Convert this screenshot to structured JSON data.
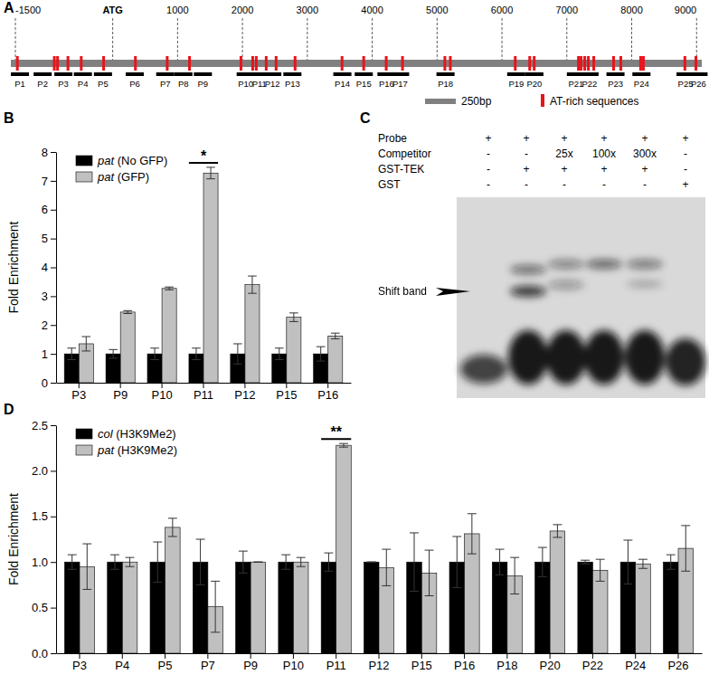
{
  "panel_labels": [
    "A",
    "B",
    "C",
    "D"
  ],
  "diagram": {
    "range": [
      -1570,
      9080
    ],
    "ticks": [
      -1500,
      {
        "value": 0,
        "label": "ATG"
      },
      1000,
      2000,
      3000,
      4000,
      5000,
      6000,
      7000,
      8000,
      9000
    ],
    "at_rich": [
      -1470,
      -900,
      -850,
      -690,
      -485,
      -140,
      350,
      840,
      1184,
      1977,
      2158,
      2213,
      2366,
      2519,
      2811,
      3535,
      3869,
      4216,
      4467,
      5120,
      5204,
      6205,
      6428,
      6497,
      7179,
      7220,
      7276,
      7332,
      7415,
      7721,
      7832,
      8138,
      8180,
      8820,
      8990
    ],
    "primers": [
      {
        "label": "P1",
        "position": -1430
      },
      {
        "label": "P2",
        "position": -1080
      },
      {
        "label": "P3",
        "position": -760
      },
      {
        "label": "P4",
        "position": -460
      },
      {
        "label": "P5",
        "position": -150
      },
      {
        "label": "P6",
        "position": 340
      },
      {
        "label": "P7",
        "position": 810
      },
      {
        "label": "P8",
        "position": 1090
      },
      {
        "label": "P9",
        "position": 1390
      },
      {
        "label": "P10",
        "position": 2050
      },
      {
        "label": "P11",
        "position": 2260
      },
      {
        "label": "P12",
        "position": 2460
      },
      {
        "label": "P13",
        "position": 2770
      },
      {
        "label": "P14",
        "position": 3540
      },
      {
        "label": "P15",
        "position": 3870
      },
      {
        "label": "P16",
        "position": 4220
      },
      {
        "label": "P17",
        "position": 4430
      },
      {
        "label": "P18",
        "position": 5130
      },
      {
        "label": "P19",
        "position": 6220
      },
      {
        "label": "P20",
        "position": 6500
      },
      {
        "label": "P21",
        "position": 7140
      },
      {
        "label": "P22",
        "position": 7350
      },
      {
        "label": "P23",
        "position": 7750
      },
      {
        "label": "P24",
        "position": 8150
      },
      {
        "label": "P25",
        "position": 8830
      },
      {
        "label": "P26",
        "position": 9030
      }
    ],
    "legend": [
      {
        "label": "250bp",
        "color": "#808080"
      },
      {
        "label": "AT-rich sequences",
        "color": "#e8141b"
      }
    ]
  },
  "gel": {
    "rows": [
      {
        "label": "Probe",
        "cells": [
          "+",
          "+",
          "+",
          "+",
          "+",
          "+"
        ]
      },
      {
        "label": "Competitor",
        "cells": [
          "-",
          "-",
          "25x",
          "100x",
          "300x",
          "-"
        ]
      },
      {
        "label": "GST-TEK",
        "cells": [
          "-",
          "+",
          "+",
          "+",
          "+",
          "-"
        ]
      },
      {
        "label": "GST",
        "cells": [
          "-",
          "-",
          "-",
          "-",
          "-",
          "+"
        ]
      }
    ],
    "annotation": "Shift band"
  },
  "chart_data": [
    {
      "type": "bar",
      "y_label": "Fold Enrichment",
      "categories": [
        "P3",
        "P9",
        "P10",
        "P11",
        "P12",
        "P15",
        "P16"
      ],
      "series": [
        {
          "name": "pat (No GFP)",
          "color": "#000000",
          "values": [
            1,
            1,
            1,
            1,
            1,
            1,
            1
          ],
          "errors": [
            0.2,
            0.15,
            0.2,
            0.2,
            0.35,
            0.2,
            0.25
          ]
        },
        {
          "name": "pat (GFP)",
          "color": "#c0c0c0",
          "values": [
            1.35,
            2.45,
            3.27,
            7.27,
            3.4,
            2.27,
            1.62
          ],
          "errors": [
            0.25,
            0.05,
            0.05,
            0.2,
            0.3,
            0.15,
            0.1
          ]
        }
      ],
      "ylim": [
        0,
        8
      ],
      "yticks": [
        0,
        1,
        2,
        3,
        4,
        5,
        6,
        7,
        8
      ],
      "legend": "upper left",
      "annotations": [
        {
          "text": "*",
          "category": "P11"
        }
      ]
    },
    {
      "type": "bar",
      "y_label": "Fold Enrichment",
      "categories": [
        "P3",
        "P4",
        "P5",
        "P7",
        "P9",
        "P10",
        "P11",
        "P12",
        "P15",
        "P16",
        "P18",
        "P20",
        "P22",
        "P24",
        "P26"
      ],
      "series": [
        {
          "name": "col (H3K9Me2)",
          "color": "#000000",
          "values": [
            1,
            1,
            1,
            1,
            1,
            1,
            1,
            1,
            1,
            1,
            1,
            1,
            1,
            1,
            1
          ],
          "errors": [
            0.08,
            0.08,
            0.22,
            0.25,
            0.12,
            0.08,
            0.1,
            0.0,
            0.32,
            0.28,
            0.14,
            0.16,
            0.02,
            0.24,
            0.08
          ]
        },
        {
          "name": "pat (H3K9Me2)",
          "color": "#c0c0c0",
          "values": [
            0.95,
            1.0,
            1.38,
            0.51,
            1.0,
            1.0,
            2.28,
            0.94,
            0.88,
            1.31,
            0.85,
            1.34,
            0.91,
            0.98,
            1.15
          ],
          "errors": [
            0.25,
            0.05,
            0.1,
            0.28,
            0.0,
            0.05,
            0.02,
            0.2,
            0.25,
            0.22,
            0.2,
            0.07,
            0.12,
            0.05,
            0.25
          ]
        }
      ],
      "ylim": [
        0,
        2.5
      ],
      "yticks": [
        {
          "value": 0,
          "label": "0.0"
        },
        0.5,
        {
          "value": 1,
          "label": "1.0"
        },
        1.5,
        {
          "value": 2,
          "label": "2.0"
        },
        2.5
      ],
      "legend": "upper left",
      "annotations": [
        {
          "text": "**",
          "category": "P11"
        }
      ]
    }
  ]
}
